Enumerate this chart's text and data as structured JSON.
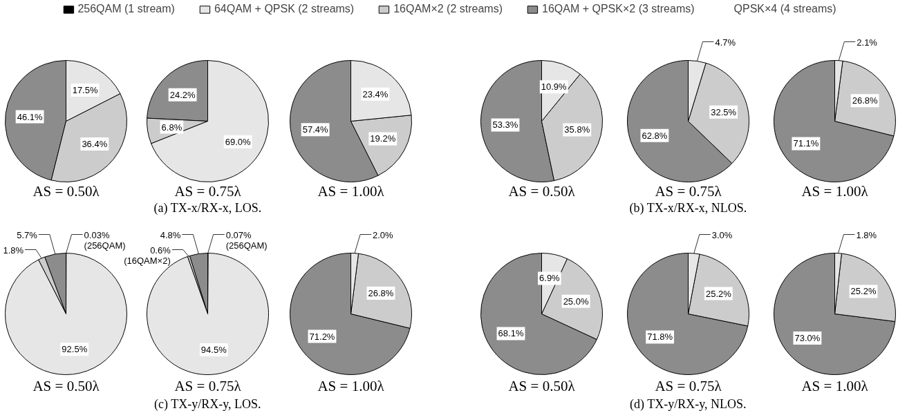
{
  "chart_data": [
    {
      "type": "pie",
      "title": "AS = 0.50λ",
      "legend": "top",
      "categories": [
        "256QAM (1 stream)",
        "64QAM + QPSK (2 streams)",
        "16QAM×2 (2 streams)",
        "16QAM + QPSK×2 (3 streams)",
        "QPSK×4 (4 streams)"
      ],
      "values": [
        0,
        17.5,
        36.4,
        46.1,
        0
      ],
      "value_labels": [
        null,
        "17.5%",
        "36.4%",
        "46.1%",
        null
      ],
      "colors": [
        "#000000",
        "#e6e6e6",
        "#cccccc",
        "#8c8c8c",
        "#ffffff"
      ]
    },
    {
      "type": "pie",
      "title": "AS = 0.75λ",
      "annotations": [
        "(a) TX-x/RX-x, LOS."
      ],
      "values": [
        0,
        69.0,
        6.8,
        24.2,
        0
      ],
      "value_labels": [
        null,
        "69.0%",
        "6.8%",
        "24.2%",
        null
      ],
      "colors": [
        "#000000",
        "#e6e6e6",
        "#cccccc",
        "#8c8c8c",
        "#ffffff"
      ]
    },
    {
      "type": "pie",
      "title": "AS = 1.00λ",
      "values": [
        0,
        23.4,
        19.2,
        57.4,
        0
      ],
      "value_labels": [
        null,
        "23.4%",
        "19.2%",
        "57.4%",
        null
      ],
      "colors": [
        "#000000",
        "#e6e6e6",
        "#cccccc",
        "#8c8c8c",
        "#ffffff"
      ]
    },
    {
      "type": "pie",
      "title": "AS = 0.50λ",
      "values": [
        0,
        10.9,
        35.8,
        53.3,
        0
      ],
      "value_labels": [
        null,
        "10.9%",
        "35.8%",
        "53.3%",
        null
      ],
      "colors": [
        "#000000",
        "#e6e6e6",
        "#cccccc",
        "#8c8c8c",
        "#ffffff"
      ]
    },
    {
      "type": "pie",
      "title": "AS = 0.75λ",
      "annotations": [
        "(b) TX-x/RX-x, NLOS."
      ],
      "values": [
        0,
        4.7,
        32.5,
        62.8,
        0
      ],
      "value_labels": [
        null,
        "4.7%",
        "32.5%",
        "62.8%",
        null
      ],
      "colors": [
        "#000000",
        "#e6e6e6",
        "#cccccc",
        "#8c8c8c",
        "#ffffff"
      ]
    },
    {
      "type": "pie",
      "title": "AS = 1.00λ",
      "values": [
        0,
        2.1,
        26.8,
        71.1,
        0
      ],
      "value_labels": [
        null,
        "2.1%",
        "26.8%",
        "71.1%",
        null
      ],
      "colors": [
        "#000000",
        "#e6e6e6",
        "#cccccc",
        "#8c8c8c",
        "#ffffff"
      ]
    },
    {
      "type": "pie",
      "title": "AS = 0.50λ",
      "values": [
        0.03,
        92.5,
        1.8,
        5.7,
        0
      ],
      "value_labels": [
        "0.03%\n(256QAM)",
        "92.5%",
        "1.8%",
        "5.7%",
        null
      ],
      "colors": [
        "#000000",
        "#e6e6e6",
        "#cccccc",
        "#8c8c8c",
        "#ffffff"
      ]
    },
    {
      "type": "pie",
      "title": "AS = 0.75λ",
      "annotations": [
        "(c) TX-y/RX-y, LOS."
      ],
      "values": [
        0.07,
        94.5,
        0.6,
        4.8,
        0
      ],
      "value_labels": [
        "0.07%\n(256QAM)",
        "94.5%",
        "0.6%\n(16QAM×2)",
        "4.8%",
        null
      ],
      "colors": [
        "#000000",
        "#e6e6e6",
        "#cccccc",
        "#8c8c8c",
        "#ffffff"
      ]
    },
    {
      "type": "pie",
      "title": "AS = 1.00λ",
      "values": [
        0,
        2.0,
        26.8,
        71.2,
        0
      ],
      "value_labels": [
        null,
        "2.0%",
        "26.8%",
        "71.2%",
        null
      ],
      "colors": [
        "#000000",
        "#e6e6e6",
        "#cccccc",
        "#8c8c8c",
        "#ffffff"
      ]
    },
    {
      "type": "pie",
      "title": "AS = 0.50λ",
      "values": [
        0,
        6.9,
        25.0,
        68.1,
        0
      ],
      "value_labels": [
        null,
        "6.9%",
        "25.0%",
        "68.1%",
        null
      ],
      "colors": [
        "#000000",
        "#e6e6e6",
        "#cccccc",
        "#8c8c8c",
        "#ffffff"
      ]
    },
    {
      "type": "pie",
      "title": "AS = 0.75λ",
      "annotations": [
        "(d) TX-y/RX-y, NLOS."
      ],
      "values": [
        0,
        3.0,
        25.2,
        71.8,
        0
      ],
      "value_labels": [
        null,
        "3.0%",
        "25.2%",
        "71.8%",
        null
      ],
      "colors": [
        "#000000",
        "#e6e6e6",
        "#cccccc",
        "#8c8c8c",
        "#ffffff"
      ]
    },
    {
      "type": "pie",
      "title": "AS = 1.00λ",
      "values": [
        0,
        1.8,
        25.2,
        73.0,
        0
      ],
      "value_labels": [
        null,
        "1.8%",
        "25.2%",
        "73.0%",
        null
      ],
      "colors": [
        "#000000",
        "#e6e6e6",
        "#cccccc",
        "#8c8c8c",
        "#ffffff"
      ]
    }
  ]
}
